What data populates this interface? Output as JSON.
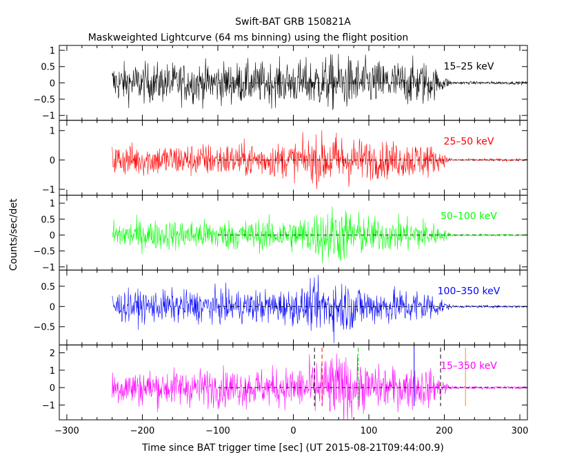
{
  "chart_data": {
    "type": "line",
    "title": "Swift-BAT GRB 150821A",
    "subtitle": "Maskweighted Lightcurve (64 ms binning) using the flight position",
    "xlabel": "Time since BAT trigger time [sec] (UT 2015-08-21T09:44:00.9)",
    "ylabel": "Counts/sec/det",
    "xlim": [
      -310,
      310
    ],
    "x_ticks": [
      "-300",
      "-200",
      "-100",
      "0",
      "100",
      "200",
      "300"
    ],
    "x_tick_values": [
      -300,
      -200,
      -100,
      0,
      100,
      200,
      300
    ],
    "data_range": [
      -240,
      310
    ],
    "emission_end": 195,
    "background_level": 0,
    "grid": false,
    "panels": [
      {
        "name": "15-25 keV",
        "label": "15–25 keV",
        "color": "#000000",
        "ylim": [
          -1.15,
          1.15
        ],
        "yticks": [
          -1,
          -0.5,
          0,
          0.5,
          1
        ],
        "ytick_labels": [
          "−1",
          "−0.5",
          "0",
          "0.5",
          "1"
        ],
        "noise_amplitude": 0.42,
        "peak_boost": 1.3,
        "markers": []
      },
      {
        "name": "25-50 keV",
        "label": "25–50 keV",
        "color": "#ff0000",
        "ylim": [
          -1.2,
          1.35
        ],
        "yticks": [
          -1,
          0,
          1
        ],
        "ytick_labels": [
          "−1",
          "0",
          "1"
        ],
        "noise_amplitude": 0.38,
        "peak_boost": 1.6,
        "markers": []
      },
      {
        "name": "50-100 keV",
        "label": "50–100 keV",
        "color": "#00ff00",
        "ylim": [
          -1.1,
          1.25
        ],
        "yticks": [
          -1,
          -0.5,
          0,
          0.5,
          1
        ],
        "ytick_labels": [
          "−1",
          "−0.5",
          "0",
          "0.5",
          "1"
        ],
        "noise_amplitude": 0.32,
        "peak_boost": 1.9,
        "markers": []
      },
      {
        "name": "100-350 keV",
        "label": "100–350 keV",
        "color": "#0000ff",
        "ylim": [
          -0.95,
          0.9
        ],
        "yticks": [
          -0.5,
          0,
          0.5
        ],
        "ytick_labels": [
          "−0.5",
          "0",
          "0.5"
        ],
        "noise_amplitude": 0.27,
        "peak_boost": 1.7,
        "markers": []
      },
      {
        "name": "15-350 keV",
        "label": "15–350 keV",
        "color": "#ff00ff",
        "ylim": [
          -1.85,
          2.45
        ],
        "yticks": [
          -1,
          0,
          1,
          2
        ],
        "ytick_labels": [
          "−1",
          "0",
          "1",
          "2"
        ],
        "noise_amplitude": 0.72,
        "peak_boost": 1.8,
        "markers": [
          {
            "x": 28,
            "color": "#000000",
            "style": "dash"
          },
          {
            "x": 38,
            "color": "#ff0000",
            "style": "dash"
          },
          {
            "x": 86,
            "color": "#00cc00",
            "style": "dashdot"
          },
          {
            "x": 160,
            "color": "#0000ff",
            "style": "solid"
          },
          {
            "x": 195,
            "color": "#000000",
            "style": "dash"
          },
          {
            "x": 228,
            "color": "#ff8c00",
            "style": "solid"
          }
        ]
      }
    ]
  }
}
